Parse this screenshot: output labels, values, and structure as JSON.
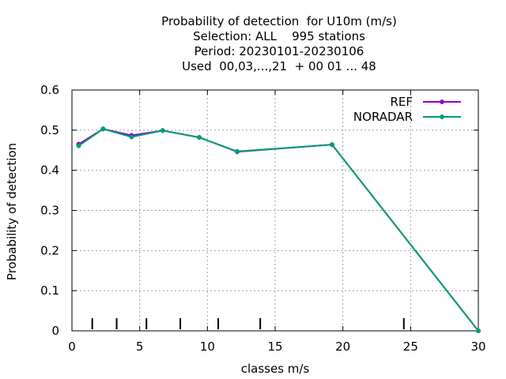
{
  "chart_data": {
    "type": "line",
    "title_lines": [
      "Probability of detection  for U10m (m/s)",
      "Selection: ALL    995 stations",
      "Period: 20230101-20230106",
      "Used  00,03,...,21  + 00 01 ... 48"
    ],
    "xlabel": "classes m/s",
    "ylabel": "Probability of detection",
    "xlim": [
      0,
      30
    ],
    "ylim": [
      0,
      0.6
    ],
    "xticks": [
      "0",
      "5",
      "10",
      "15",
      "20",
      "25",
      "30"
    ],
    "yticks": [
      "0",
      "0.1",
      "0.2",
      "0.3",
      "0.4",
      "0.5",
      "0.6"
    ],
    "grid": true,
    "legend_position": "top-right",
    "class_markers": [
      1.5,
      3.3,
      5.5,
      8.0,
      10.8,
      13.9,
      24.5
    ],
    "series": [
      {
        "name": "REF",
        "color": "#9400d3",
        "points": [
          [
            0.5,
            0.465
          ],
          [
            2.3,
            0.503
          ],
          [
            4.4,
            0.487
          ],
          [
            6.7,
            0.499
          ],
          [
            9.4,
            0.482
          ],
          [
            12.2,
            0.446
          ],
          [
            19.2,
            0.464
          ],
          [
            30.0,
            0.0
          ]
        ]
      },
      {
        "name": "NORADAR",
        "color": "#009e73",
        "points": [
          [
            0.5,
            0.461
          ],
          [
            2.3,
            0.503
          ],
          [
            4.4,
            0.483
          ],
          [
            6.7,
            0.499
          ],
          [
            9.4,
            0.482
          ],
          [
            12.2,
            0.447
          ],
          [
            19.2,
            0.464
          ],
          [
            30.0,
            0.0
          ]
        ]
      }
    ]
  }
}
